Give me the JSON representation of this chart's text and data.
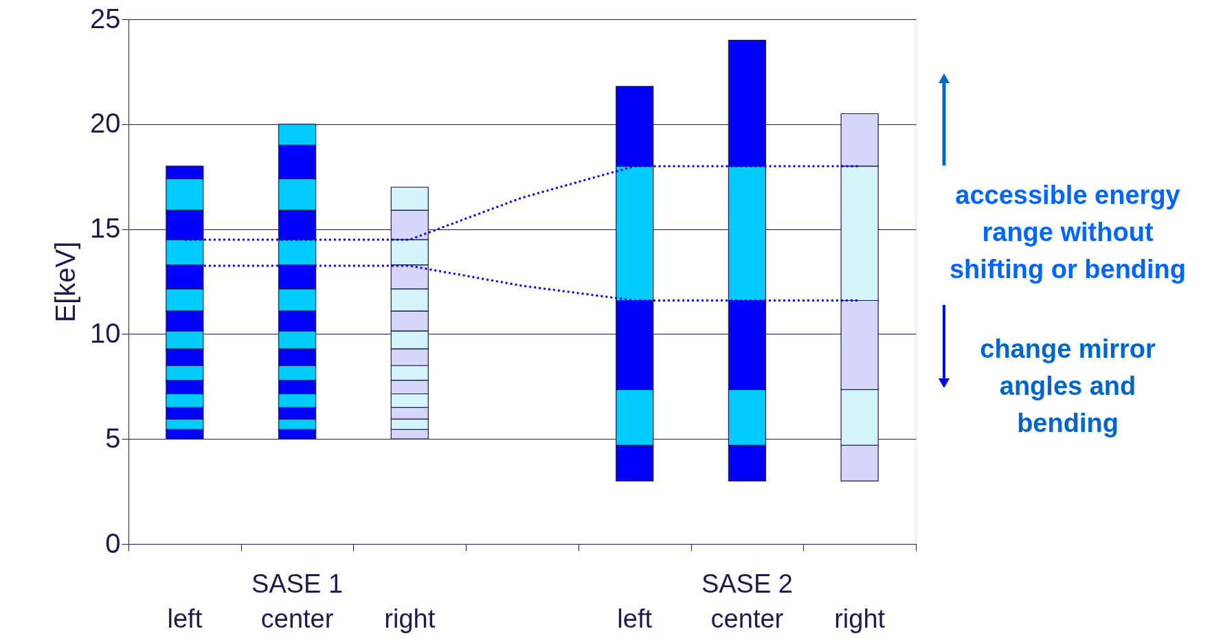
{
  "chart_data": {
    "type": "bar",
    "ylabel": "E[keV]",
    "categories": [
      "left",
      "center",
      "right",
      null,
      "left",
      "center",
      "right"
    ],
    "series": [
      {
        "base": [
          5,
          5,
          5,
          null,
          3,
          3,
          3
        ],
        "values": [
          0.45,
          0.45,
          0.45,
          null,
          1.7,
          1.7,
          1.7
        ],
        "colors": [
          "#0000ff",
          "#0000ff",
          "#d6d6fa",
          null,
          "#0000ff",
          "#0000ff",
          "#d6d6fa"
        ]
      },
      {
        "base": [
          5.45,
          5.45,
          5.45,
          null,
          4.7,
          4.7,
          4.7
        ],
        "values": [
          0.5,
          0.5,
          0.5,
          null,
          2.65,
          2.65,
          2.65
        ],
        "colors": [
          "#00ccff",
          "#00ccff",
          "#d4f4fc",
          null,
          "#00ccff",
          "#00ccff",
          "#d4f4fc"
        ]
      },
      {
        "base": [
          5.95,
          5.95,
          5.95,
          null,
          7.35,
          7.35,
          7.35
        ],
        "values": [
          0.55,
          0.55,
          0.55,
          null,
          4.25,
          4.25,
          4.25
        ],
        "colors": [
          "#0000ff",
          "#0000ff",
          "#d6d6fa",
          null,
          "#0000ff",
          "#0000ff",
          "#d6d6fa"
        ]
      },
      {
        "base": [
          6.5,
          6.5,
          6.5,
          null,
          11.6,
          11.6,
          11.6
        ],
        "values": [
          0.65,
          0.65,
          0.65,
          null,
          6.4,
          6.4,
          6.4
        ],
        "colors": [
          "#00ccff",
          "#00ccff",
          "#d4f4fc",
          null,
          "#00ccff",
          "#00ccff",
          "#d4f4fc"
        ]
      },
      {
        "base": [
          7.15,
          7.15,
          7.15,
          null,
          18.0,
          18.0,
          18.0
        ],
        "values": [
          0.65,
          0.65,
          0.65,
          null,
          3.8,
          6.0,
          2.5
        ],
        "colors": [
          "#0000ff",
          "#0000ff",
          "#d6d6fa",
          null,
          "#0000ff",
          "#0000ff",
          "#d6d6fa"
        ]
      },
      {
        "base": [
          7.8,
          7.8,
          7.8,
          null,
          null,
          null,
          null
        ],
        "values": [
          0.7,
          0.7,
          0.7,
          null,
          null,
          null,
          null
        ],
        "colors": [
          "#00ccff",
          "#00ccff",
          "#d4f4fc",
          null,
          null,
          null,
          null
        ]
      },
      {
        "base": [
          8.5,
          8.5,
          8.5,
          null,
          null,
          null,
          null
        ],
        "values": [
          0.8,
          0.8,
          0.8,
          null,
          null,
          null,
          null
        ],
        "colors": [
          "#0000ff",
          "#0000ff",
          "#d6d6fa",
          null,
          null,
          null,
          null
        ]
      },
      {
        "base": [
          9.3,
          9.3,
          9.3,
          null,
          null,
          null,
          null
        ],
        "values": [
          0.85,
          0.85,
          0.85,
          null,
          null,
          null,
          null
        ],
        "colors": [
          "#00ccff",
          "#00ccff",
          "#d4f4fc",
          null,
          null,
          null,
          null
        ]
      },
      {
        "base": [
          10.15,
          10.15,
          10.15,
          null,
          null,
          null,
          null
        ],
        "values": [
          0.95,
          0.95,
          0.95,
          null,
          null,
          null,
          null
        ],
        "colors": [
          "#0000ff",
          "#0000ff",
          "#d6d6fa",
          null,
          null,
          null,
          null
        ]
      },
      {
        "base": [
          11.1,
          11.1,
          11.1,
          null,
          null,
          null,
          null
        ],
        "values": [
          1.05,
          1.05,
          1.05,
          null,
          null,
          null,
          null
        ],
        "colors": [
          "#00ccff",
          "#00ccff",
          "#d4f4fc",
          null,
          null,
          null,
          null
        ]
      },
      {
        "base": [
          12.15,
          12.15,
          12.15,
          null,
          null,
          null,
          null
        ],
        "values": [
          1.15,
          1.15,
          1.15,
          null,
          null,
          null,
          null
        ],
        "colors": [
          "#0000ff",
          "#0000ff",
          "#d6d6fa",
          null,
          null,
          null,
          null
        ]
      },
      {
        "base": [
          13.3,
          13.3,
          13.3,
          null,
          null,
          null,
          null
        ],
        "values": [
          1.2,
          1.2,
          1.2,
          null,
          null,
          null,
          null
        ],
        "colors": [
          "#00ccff",
          "#00ccff",
          "#d4f4fc",
          null,
          null,
          null,
          null
        ]
      },
      {
        "base": [
          14.5,
          14.5,
          14.5,
          null,
          null,
          null,
          null
        ],
        "values": [
          1.4,
          1.4,
          1.4,
          null,
          null,
          null,
          null
        ],
        "colors": [
          "#0000ff",
          "#0000ff",
          "#d6d6fa",
          null,
          null,
          null,
          null
        ]
      },
      {
        "base": [
          15.9,
          15.9,
          15.9,
          null,
          null,
          null,
          null
        ],
        "values": [
          1.5,
          1.5,
          1.1,
          null,
          null,
          null,
          null
        ],
        "colors": [
          "#00ccff",
          "#00ccff",
          "#d4f4fc",
          null,
          null,
          null,
          null
        ]
      },
      {
        "base": [
          17.4,
          17.4,
          null,
          null,
          null,
          null,
          null
        ],
        "values": [
          0.6,
          1.6,
          null,
          null,
          null,
          null,
          null
        ],
        "colors": [
          "#0000ff",
          "#0000ff",
          null,
          null,
          null,
          null,
          null
        ]
      },
      {
        "base": [
          null,
          19.0,
          null,
          null,
          null,
          null,
          null
        ],
        "values": [
          null,
          1.0,
          null,
          null,
          null,
          null,
          null
        ],
        "colors": [
          null,
          "#00ccff",
          null,
          null,
          null,
          null,
          null
        ]
      },
      {
        "type": "line",
        "values": [
          14.5,
          14.5,
          14.5,
          16.5,
          18.0,
          18.0,
          18.0
        ],
        "color": "#0000ff",
        "line_style": "dotted",
        "marker": "none"
      },
      {
        "type": "line",
        "values": [
          13.25,
          13.25,
          13.25,
          12.3,
          11.6,
          11.6,
          11.6
        ],
        "color": "#0000ff",
        "line_style": "dotted",
        "marker": "none"
      }
    ],
    "ylim": [
      0,
      25
    ],
    "yticks": [
      0,
      5,
      10,
      15,
      20,
      25
    ],
    "grid": "y",
    "annotations": [
      "SASE 1",
      "SASE 2",
      "accessible energy\nrange without\nshifting or bending",
      "change mirror\nangles and\nbending"
    ]
  }
}
